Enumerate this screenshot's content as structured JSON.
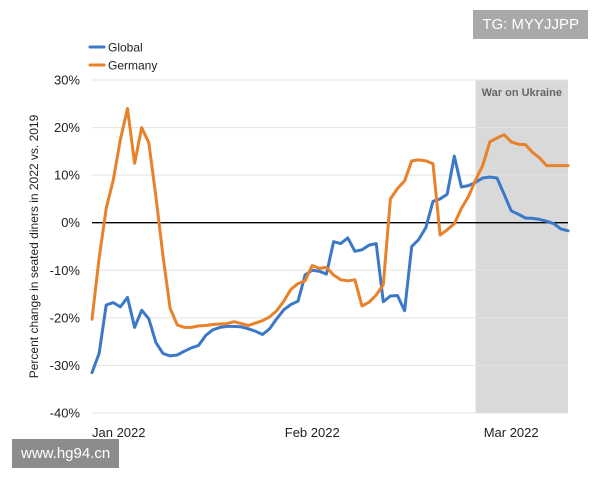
{
  "watermarks": {
    "top": "TG: MYYJJPP",
    "bottom": "www.hg94.cn"
  },
  "colors": {
    "global": "#3c78c8",
    "germany": "#e8822a",
    "band": "#d9d9d9",
    "zero": "#000000",
    "grid": "#e3e3e3"
  },
  "chart_data": {
    "type": "line",
    "title": "",
    "xlabel": "",
    "ylabel": "Percent change in seated diners in 2022 vs. 2019",
    "ylim": [
      -40,
      30
    ],
    "xlim": [
      0,
      67
    ],
    "yticks": [
      30,
      20,
      10,
      0,
      -10,
      -20,
      -30,
      -40
    ],
    "ytick_labels": [
      "30%",
      "20%",
      "10%",
      "0%",
      "-10%",
      "-20%",
      "-30%",
      "-40%"
    ],
    "xticks": [
      {
        "label": "Jan 2022",
        "x": 0
      },
      {
        "label": "Feb 2022",
        "x": 31
      },
      {
        "label": "Mar 2022",
        "x": 59
      }
    ],
    "grid": "horizontal",
    "legend": "top-left",
    "shaded_region": {
      "label": "War on Ukraine",
      "x_start": 54,
      "x_end": 67
    },
    "series": [
      {
        "name": "Global",
        "color": "#3c78c8",
        "x": [
          0,
          1,
          2,
          3,
          4,
          5,
          6,
          7,
          8,
          9,
          10,
          11,
          12,
          13,
          14,
          15,
          16,
          17,
          18,
          19,
          20,
          21,
          22,
          23,
          24,
          25,
          26,
          27,
          28,
          29,
          30,
          31,
          32,
          33,
          34,
          35,
          36,
          37,
          38,
          39,
          40,
          41,
          42,
          43,
          44,
          45,
          46,
          47,
          48,
          49,
          50,
          51,
          52,
          53,
          54,
          55,
          56,
          57,
          58,
          59,
          60,
          61,
          62,
          63,
          64,
          65,
          66,
          67
        ],
        "values": [
          -31.5,
          -27.5,
          -17.3,
          -16.8,
          -17.7,
          -15.7,
          -22.0,
          -18.4,
          -20.2,
          -25.2,
          -27.5,
          -28.0,
          -27.8,
          -27.0,
          -26.3,
          -25.8,
          -23.7,
          -22.5,
          -22.0,
          -21.8,
          -21.8,
          -21.9,
          -22.3,
          -22.8,
          -23.5,
          -22.3,
          -20.2,
          -18.3,
          -17.2,
          -16.5,
          -11.0,
          -10.0,
          -10.2,
          -10.8,
          -4.0,
          -4.4,
          -3.2,
          -6.0,
          -5.7,
          -4.7,
          -4.4,
          -16.6,
          -15.4,
          -15.3,
          -18.5,
          -5.0,
          -3.5,
          -1.0,
          4.5,
          5.0,
          6.0,
          14.0,
          7.5,
          7.8,
          8.5,
          9.4,
          9.6,
          9.4,
          6.0,
          2.5,
          1.8,
          1.0,
          0.9,
          0.7,
          0.3,
          -0.2,
          -1.3,
          -1.7
        ]
      },
      {
        "name": "Germany",
        "color": "#e8822a",
        "x": [
          0,
          1,
          2,
          3,
          4,
          5,
          6,
          7,
          8,
          9,
          10,
          11,
          12,
          13,
          14,
          15,
          16,
          17,
          18,
          19,
          20,
          21,
          22,
          23,
          24,
          25,
          26,
          27,
          28,
          29,
          30,
          31,
          32,
          33,
          34,
          35,
          36,
          37,
          38,
          39,
          40,
          41,
          42,
          43,
          44,
          45,
          46,
          47,
          48,
          49,
          50,
          51,
          52,
          53,
          54,
          55,
          56,
          57,
          58,
          59,
          60,
          61,
          62,
          63,
          64,
          65,
          66,
          67
        ],
        "values": [
          -20.3,
          -7.5,
          3.0,
          9.0,
          17.5,
          24.0,
          12.5,
          20.0,
          16.8,
          5.5,
          -7.0,
          -18.0,
          -21.5,
          -22.0,
          -22.0,
          -21.7,
          -21.6,
          -21.4,
          -21.3,
          -21.2,
          -20.8,
          -21.2,
          -21.6,
          -21.1,
          -20.6,
          -19.8,
          -18.5,
          -16.5,
          -14.0,
          -12.8,
          -12.2,
          -9.0,
          -9.6,
          -9.4,
          -11.0,
          -12.0,
          -12.2,
          -12.0,
          -17.5,
          -16.7,
          -15.2,
          -13.0,
          5.0,
          7.2,
          8.8,
          13.0,
          13.2,
          13.0,
          12.4,
          -2.6,
          -1.5,
          -0.2,
          3.0,
          5.5,
          9.0,
          12.0,
          17.0,
          17.8,
          18.5,
          17.0,
          16.5,
          16.4,
          14.8,
          13.6,
          12.0,
          12.0,
          12.0,
          12.0
        ]
      }
    ]
  }
}
